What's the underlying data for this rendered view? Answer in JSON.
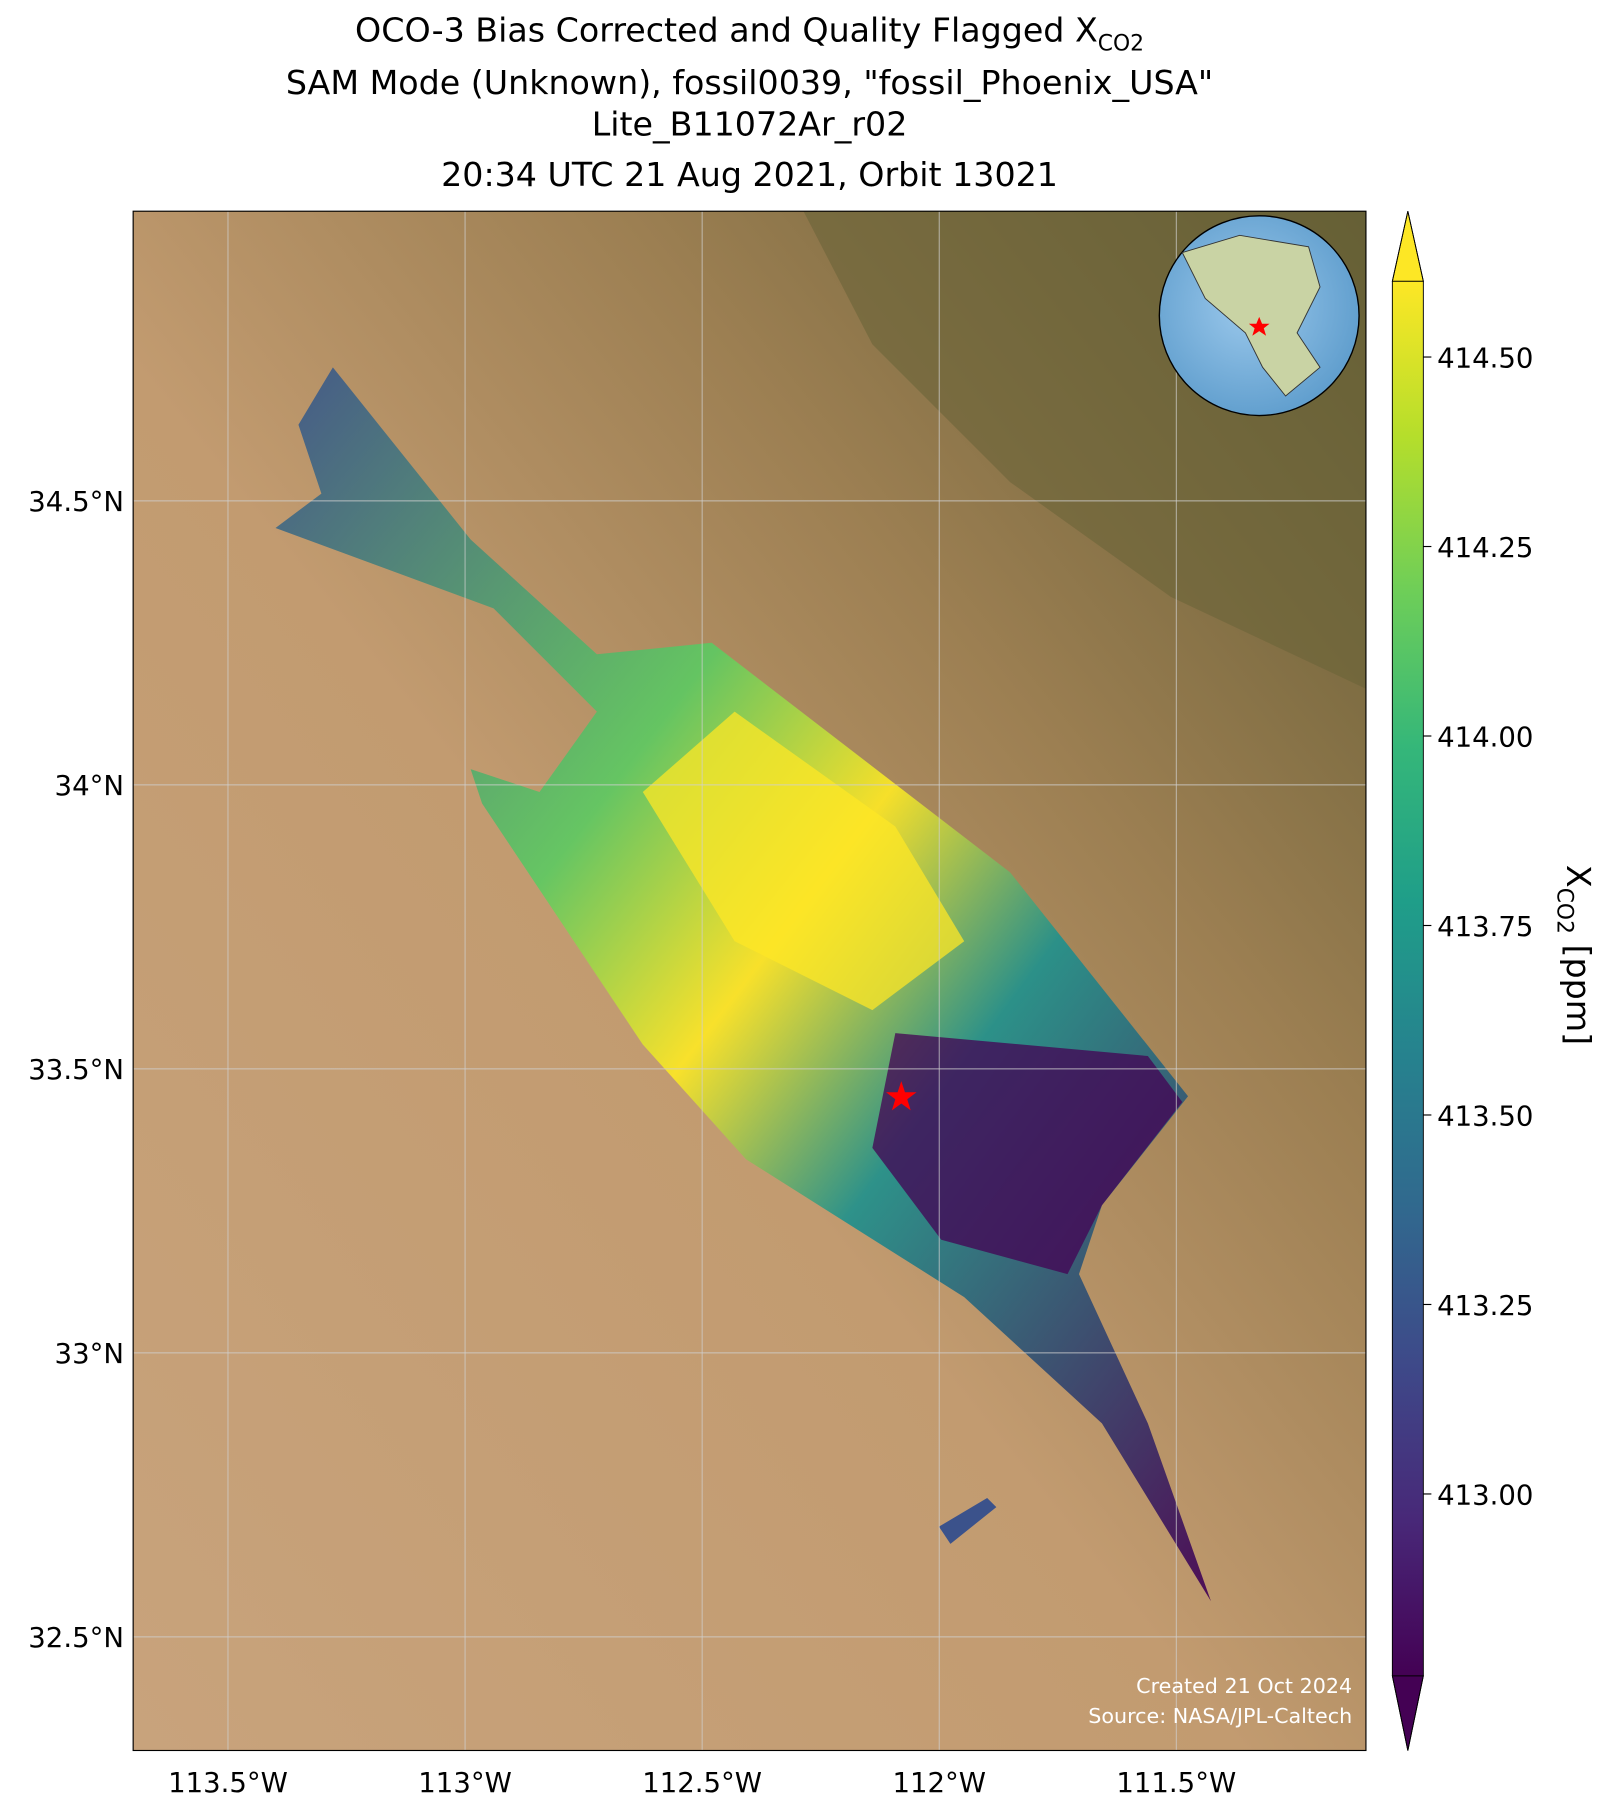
{
  "chart_data": {
    "type": "map",
    "title_lines": [
      "OCO-3 Bias Corrected and Quality Flagged X",
      "SAM Mode (Unknown), fossil0039, \"fossil_Phoenix_USA\"",
      "Lite_B11072Ar_r02",
      "20:34 UTC 21 Aug 2021, Orbit 13021"
    ],
    "title_subscript": "CO2",
    "xlim": [
      -113.7,
      -111.1
    ],
    "ylim": [
      32.3,
      35.01
    ],
    "xticks": [
      {
        "value": -113.5,
        "label": "113.5°W"
      },
      {
        "value": -113,
        "label": "113°W"
      },
      {
        "value": -112.5,
        "label": "112.5°W"
      },
      {
        "value": -112,
        "label": "112°W"
      },
      {
        "value": -111.5,
        "label": "111.5°W"
      }
    ],
    "yticks": [
      {
        "value": 34.5,
        "label": "34.5°N"
      },
      {
        "value": 34,
        "label": "34°N"
      },
      {
        "value": 33.5,
        "label": "33.5°N"
      },
      {
        "value": 33,
        "label": "33°N"
      },
      {
        "value": 32.5,
        "label": "32.5°N"
      }
    ],
    "grid": true,
    "site": {
      "lon": -112.08,
      "lat": 33.45,
      "color": "#ff0000"
    },
    "colorbar": {
      "colormap": "viridis",
      "clim": [
        412.76,
        414.6
      ],
      "ticks": [
        {
          "value": 413.0,
          "label": "413.00"
        },
        {
          "value": 413.25,
          "label": "413.25"
        },
        {
          "value": 413.5,
          "label": "413.50"
        },
        {
          "value": 413.75,
          "label": "413.75"
        },
        {
          "value": 414.0,
          "label": "414.00"
        },
        {
          "value": 414.25,
          "label": "414.25"
        },
        {
          "value": 414.5,
          "label": "414.50"
        }
      ],
      "label": "X",
      "label_subscript": "CO2",
      "label_unit": " [ppm]"
    },
    "annotations": [
      "Created 21 Oct 2024",
      "Source: NASA/JPL-Caltech"
    ]
  }
}
